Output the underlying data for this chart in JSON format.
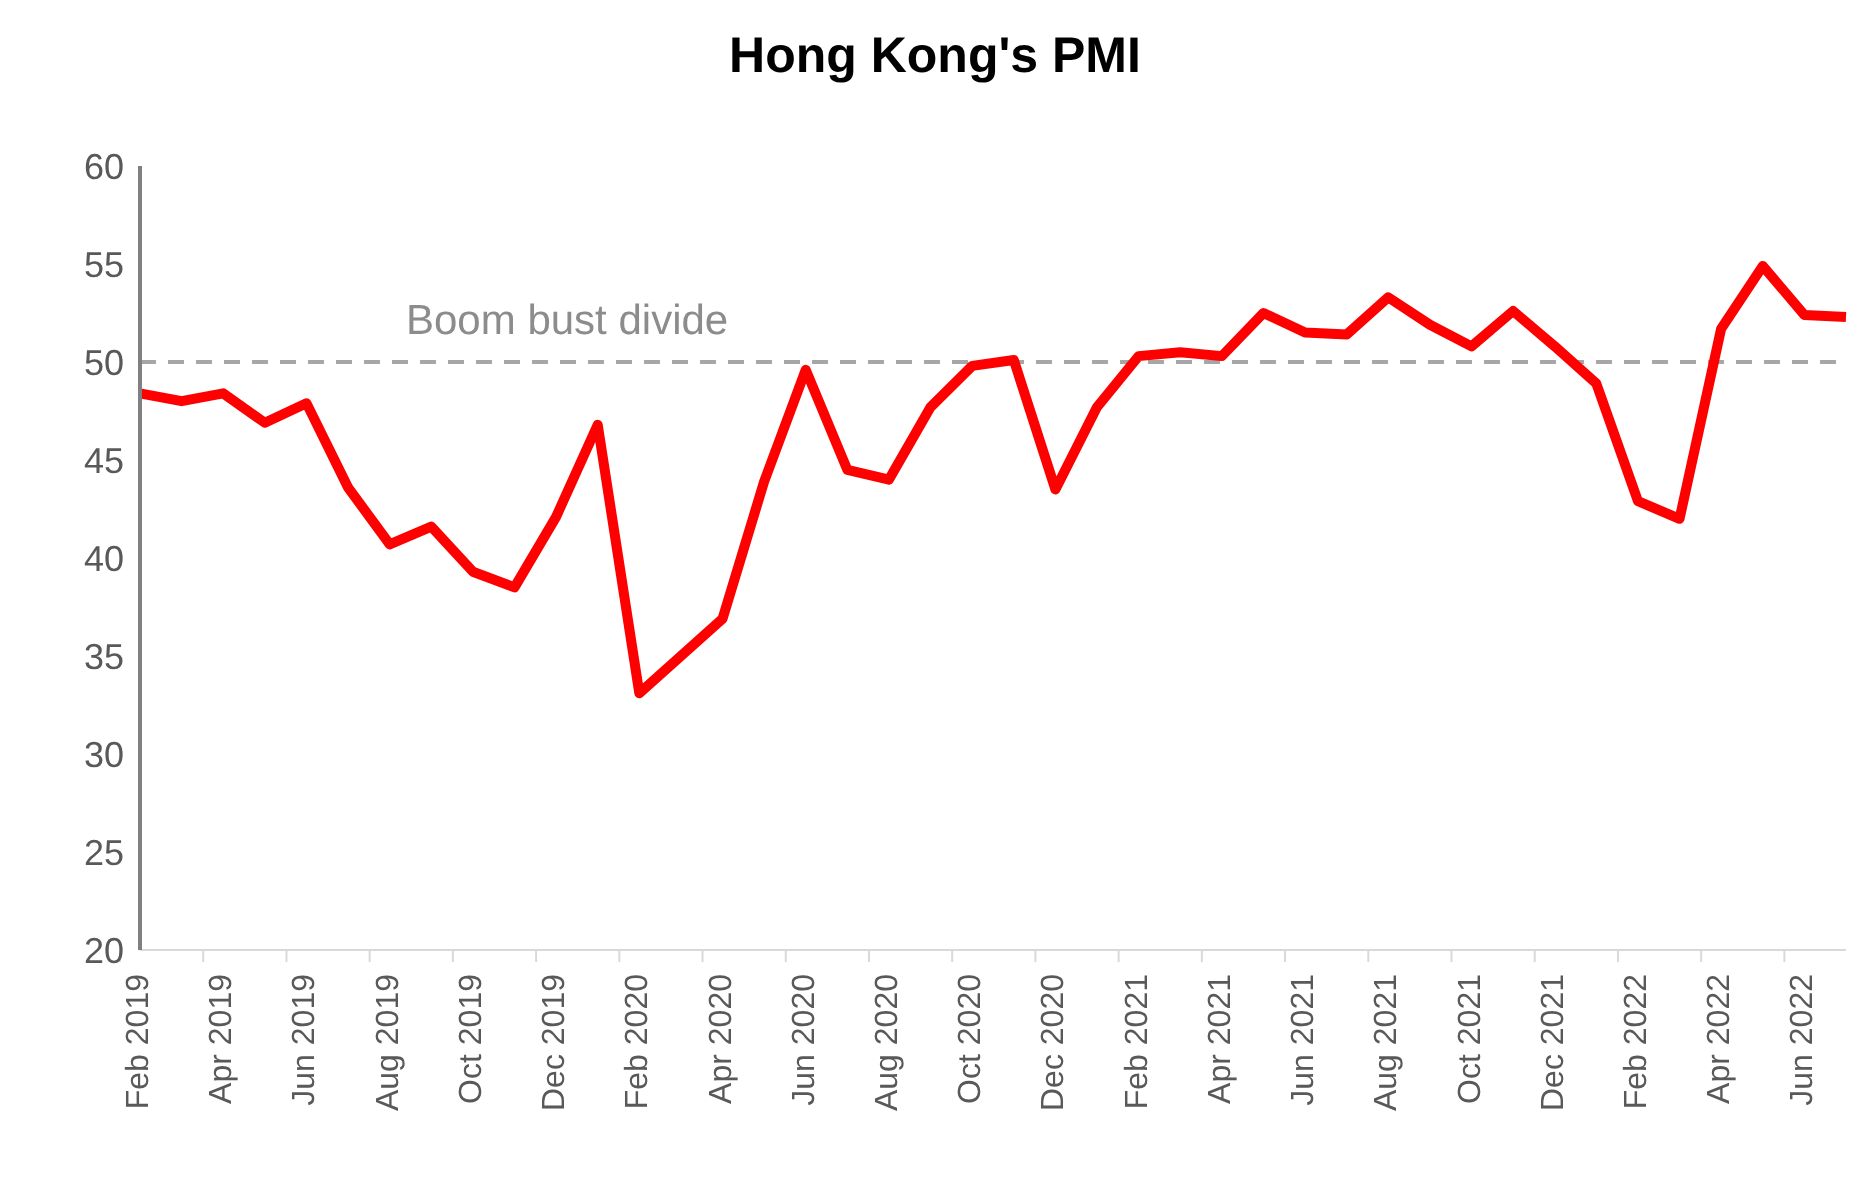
{
  "chart_data": {
    "type": "line",
    "title": "Hong Kong's PMI",
    "categories": [
      "Feb 2019",
      null,
      "Apr 2019",
      null,
      "Jun 2019",
      null,
      "Aug 2019",
      null,
      "Oct 2019",
      null,
      "Dec 2019",
      null,
      "Feb 2020",
      null,
      "Apr 2020",
      null,
      "Jun 2020",
      null,
      "Aug 2020",
      null,
      "Oct 2020",
      null,
      "Dec 2020",
      null,
      "Feb 2021",
      null,
      "Apr 2021",
      null,
      "Jun 2021",
      null,
      "Aug 2021",
      null,
      "Oct 2021",
      null,
      "Dec 2021",
      null,
      "Feb 2022",
      null,
      "Apr 2022",
      null,
      "Jun 2022",
      null
    ],
    "series": [
      {
        "color": "#ff0000",
        "values": [
          48.4,
          48.0,
          48.4,
          46.9,
          47.9,
          43.6,
          40.7,
          41.6,
          39.3,
          38.5,
          42.1,
          46.8,
          33.1,
          35.0,
          36.9,
          43.9,
          49.6,
          44.5,
          44.0,
          47.7,
          49.8,
          50.1,
          43.5,
          47.7,
          50.3,
          50.5,
          50.3,
          52.5,
          51.5,
          51.4,
          53.3,
          51.9,
          50.8,
          52.6,
          50.8,
          48.9,
          42.9,
          42.0,
          51.7,
          54.9,
          52.4,
          52.3
        ]
      }
    ],
    "ylim": [
      20,
      60
    ],
    "yticks": [
      20,
      25,
      30,
      35,
      40,
      45,
      50,
      55,
      60
    ],
    "grid": false,
    "legend": false,
    "marker": "none",
    "line_style": "solid",
    "ref_lines": [
      {
        "axis": "y",
        "value": 50,
        "label": "Boom bust divide",
        "color": "#a6a6a6",
        "line_style": "dashed"
      }
    ]
  }
}
